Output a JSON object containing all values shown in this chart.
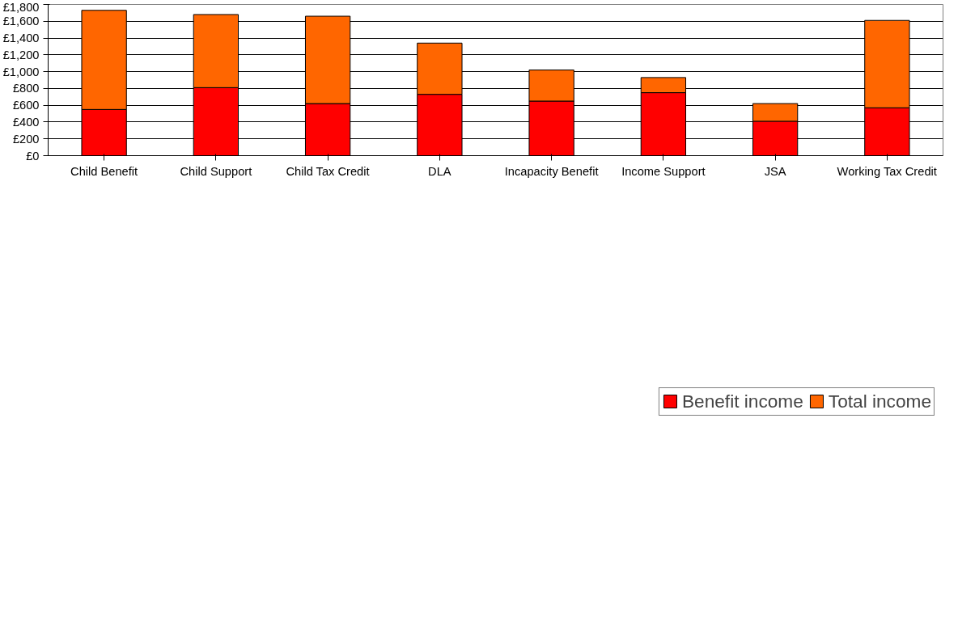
{
  "chart_data": {
    "type": "bar",
    "stacked": true,
    "categories": [
      "Child Benefit",
      "Child Support",
      "Child Tax Credit",
      "DLA",
      "Incapacity Benefit",
      "Income Support",
      "JSA",
      "Working Tax Credit"
    ],
    "series": [
      {
        "name": "Benefit income",
        "color": "#ff0000",
        "values": [
          550,
          810,
          620,
          730,
          650,
          750,
          410,
          570
        ]
      },
      {
        "name": "Total income",
        "color": "#ff6600",
        "values": [
          1180,
          870,
          1040,
          610,
          370,
          180,
          210,
          1040
        ]
      }
    ],
    "ylim": [
      0,
      1800
    ],
    "yticks": [
      {
        "value": 0,
        "label": "£0"
      },
      {
        "value": 200,
        "label": "£200"
      },
      {
        "value": 400,
        "label": "£400"
      },
      {
        "value": 600,
        "label": "£600"
      },
      {
        "value": 800,
        "label": "£800"
      },
      {
        "value": 1000,
        "label": "£1,000"
      },
      {
        "value": 1200,
        "label": "£1,200"
      },
      {
        "value": 1400,
        "label": "£1,400"
      },
      {
        "value": 1600,
        "label": "£1,600"
      },
      {
        "value": 1800,
        "label": "£1,800"
      }
    ],
    "grid": "y",
    "legend": "bottom"
  }
}
